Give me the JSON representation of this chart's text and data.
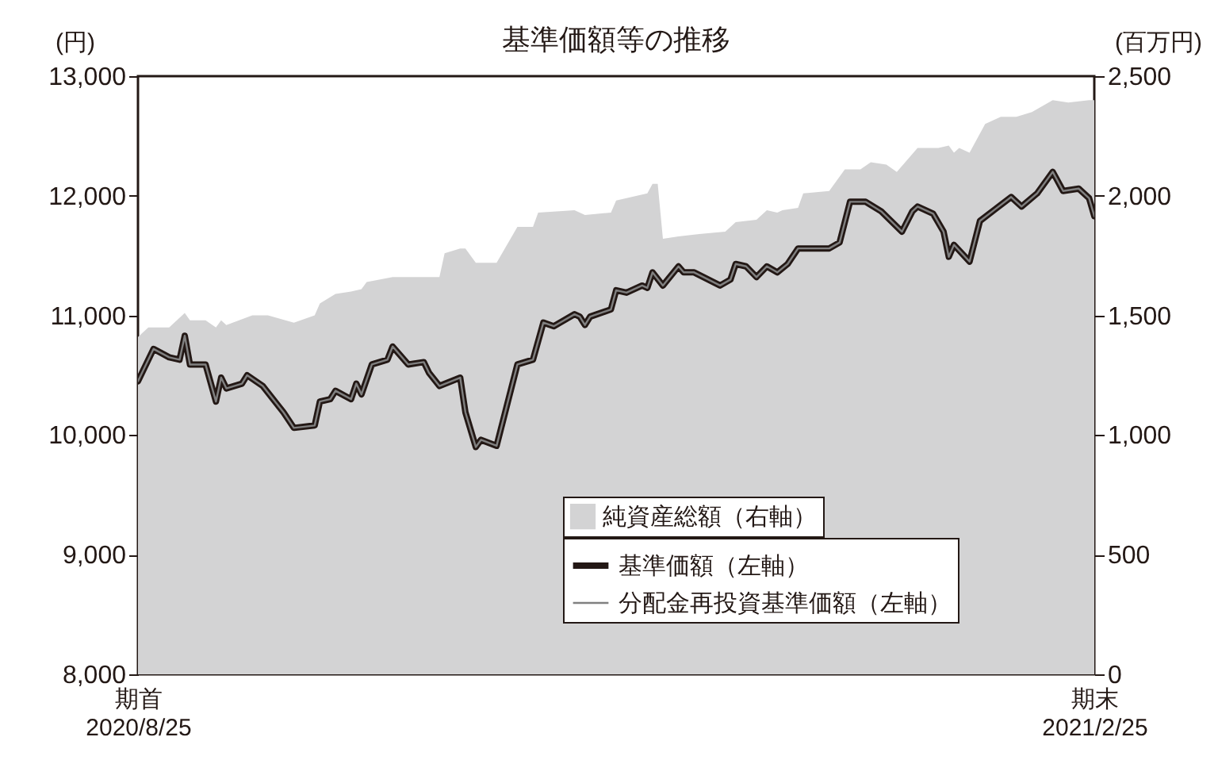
{
  "chart_data": {
    "type": "line",
    "title": "基準価額等の推移",
    "ylabel": "(円)",
    "y2label": "(百万円)",
    "xlim": [
      "2020-08-25",
      "2021-02-25"
    ],
    "xticks": [
      {
        "value": "2020-08-25",
        "label": "期首\n2020/8/25"
      },
      {
        "value": "2021-02-25",
        "label": "期末\n2021/2/25"
      }
    ],
    "ylim": [
      8000,
      13000
    ],
    "yticks": [
      {
        "value": 8000,
        "label": "8,000"
      },
      {
        "value": 9000,
        "label": "9,000"
      },
      {
        "value": 10000,
        "label": "10,000"
      },
      {
        "value": 11000,
        "label": "11,000"
      },
      {
        "value": 12000,
        "label": "12,000"
      },
      {
        "value": 13000,
        "label": "13,000"
      }
    ],
    "y2lim": [
      0,
      2500
    ],
    "y2ticks": [
      0,
      500,
      {
        "value": 1000,
        "label": "1,000"
      },
      {
        "value": 1500,
        "label": "1,500"
      },
      {
        "value": 2000,
        "label": "2,000"
      },
      {
        "value": 2500,
        "label": "2,500"
      }
    ],
    "grid": false,
    "legend": "bottom right",
    "series": [
      {
        "name": "純資産総額（右軸）",
        "type": "area",
        "axis": "y2",
        "color": "#d3d3d4",
        "x": [
          "2020-08-25",
          "2020-08-27",
          "2020-08-31",
          "2020-09-03",
          "2020-09-04",
          "2020-09-07",
          "2020-09-09",
          "2020-09-10",
          "2020-09-11",
          "2020-09-16",
          "2020-09-19",
          "2020-09-24",
          "2020-09-28",
          "2020-09-29",
          "2020-10-02",
          "2020-10-05",
          "2020-10-07",
          "2020-10-08",
          "2020-10-13",
          "2020-10-16",
          "2020-10-19",
          "2020-10-22",
          "2020-10-23",
          "2020-10-26",
          "2020-10-27",
          "2020-10-28",
          "2020-10-29",
          "2020-11-02",
          "2020-11-06",
          "2020-11-09",
          "2020-11-10",
          "2020-11-17",
          "2020-11-19",
          "2020-11-24",
          "2020-11-25",
          "2020-12-01",
          "2020-12-02",
          "2020-12-03",
          "2020-12-04",
          "2020-12-07",
          "2020-12-11",
          "2020-12-16",
          "2020-12-18",
          "2020-12-22",
          "2020-12-24",
          "2020-12-26",
          "2020-12-27",
          "2020-12-30",
          "2020-12-31",
          "2021-01-05",
          "2021-01-08",
          "2021-01-11",
          "2021-01-13",
          "2021-01-16",
          "2021-01-18",
          "2021-01-22",
          "2021-01-26",
          "2021-01-28",
          "2021-01-29",
          "2021-01-30",
          "2021-02-01",
          "2021-02-04",
          "2021-02-07",
          "2021-02-10",
          "2021-02-13",
          "2021-02-17",
          "2021-02-20",
          "2021-02-24",
          "2021-02-25"
        ],
        "values": [
          1410,
          1450,
          1450,
          1510,
          1480,
          1480,
          1450,
          1480,
          1460,
          1500,
          1500,
          1470,
          1500,
          1550,
          1590,
          1600,
          1610,
          1640,
          1660,
          1660,
          1660,
          1660,
          1760,
          1780,
          1780,
          1750,
          1720,
          1720,
          1870,
          1870,
          1930,
          1940,
          1920,
          1930,
          1980,
          2010,
          2050,
          2050,
          1820,
          1830,
          1840,
          1850,
          1890,
          1900,
          1940,
          1930,
          1940,
          1950,
          2010,
          2020,
          2110,
          2110,
          2140,
          2130,
          2100,
          2200,
          2200,
          2210,
          2180,
          2200,
          2180,
          2300,
          2330,
          2330,
          2350,
          2400,
          2390,
          2400,
          2400
        ]
      },
      {
        "name": "基準価額（左軸）",
        "type": "line",
        "color": "#231815",
        "x": [
          "2020-08-25",
          "2020-08-28",
          "2020-08-31",
          "2020-09-02",
          "2020-09-03",
          "2020-09-04",
          "2020-09-07",
          "2020-09-09",
          "2020-09-10",
          "2020-09-11",
          "2020-09-14",
          "2020-09-15",
          "2020-09-18",
          "2020-09-22",
          "2020-09-24",
          "2020-09-28",
          "2020-09-29",
          "2020-10-01",
          "2020-10-02",
          "2020-10-05",
          "2020-10-06",
          "2020-10-07",
          "2020-10-09",
          "2020-10-12",
          "2020-10-13",
          "2020-10-16",
          "2020-10-19",
          "2020-10-20",
          "2020-10-22",
          "2020-10-26",
          "2020-10-27",
          "2020-10-29",
          "2020-10-30",
          "2020-11-02",
          "2020-11-06",
          "2020-11-09",
          "2020-11-11",
          "2020-11-13",
          "2020-11-17",
          "2020-11-18",
          "2020-11-19",
          "2020-11-20",
          "2020-11-24",
          "2020-11-25",
          "2020-11-27",
          "2020-11-30",
          "2020-12-01",
          "2020-12-02",
          "2020-12-04",
          "2020-12-07",
          "2020-12-08",
          "2020-12-10",
          "2020-12-15",
          "2020-12-17",
          "2020-12-18",
          "2020-12-20",
          "2020-12-22",
          "2020-12-24",
          "2020-12-26",
          "2020-12-28",
          "2020-12-30",
          "2021-01-05",
          "2021-01-07",
          "2021-01-09",
          "2021-01-12",
          "2021-01-15",
          "2021-01-19",
          "2021-01-21",
          "2021-01-22",
          "2021-01-25",
          "2021-01-27",
          "2021-01-28",
          "2021-01-29",
          "2021-02-01",
          "2021-02-03",
          "2021-02-06",
          "2021-02-09",
          "2021-02-11",
          "2021-02-14",
          "2021-02-17",
          "2021-02-19",
          "2021-02-22",
          "2021-02-24",
          "2021-02-25"
        ],
        "values": [
          10450,
          10720,
          10650,
          10630,
          10830,
          10590,
          10590,
          10280,
          10480,
          10390,
          10430,
          10500,
          10410,
          10190,
          10060,
          10080,
          10280,
          10300,
          10370,
          10300,
          10430,
          10340,
          10590,
          10630,
          10740,
          10590,
          10610,
          10520,
          10410,
          10480,
          10190,
          9900,
          9960,
          9910,
          10590,
          10630,
          10940,
          10910,
          11010,
          10990,
          10920,
          10990,
          11050,
          11210,
          11190,
          11250,
          11230,
          11360,
          11250,
          11410,
          11360,
          11360,
          11250,
          11300,
          11430,
          11410,
          11320,
          11410,
          11360,
          11430,
          11560,
          11560,
          11610,
          11950,
          11950,
          11870,
          11700,
          11870,
          11910,
          11850,
          11700,
          11490,
          11590,
          11450,
          11790,
          11890,
          11990,
          11910,
          12020,
          12200,
          12040,
          12060,
          11980,
          11830
        ]
      },
      {
        "name": "分配金再投資基準価額（左軸）",
        "type": "line",
        "color": "#808080",
        "x": [
          "2020-08-25",
          "2020-08-28",
          "2020-08-31",
          "2020-09-02",
          "2020-09-03",
          "2020-09-04",
          "2020-09-07",
          "2020-09-09",
          "2020-09-10",
          "2020-09-11",
          "2020-09-14",
          "2020-09-15",
          "2020-09-18",
          "2020-09-22",
          "2020-09-24",
          "2020-09-28",
          "2020-09-29",
          "2020-10-01",
          "2020-10-02",
          "2020-10-05",
          "2020-10-06",
          "2020-10-07",
          "2020-10-09",
          "2020-10-12",
          "2020-10-13",
          "2020-10-16",
          "2020-10-19",
          "2020-10-20",
          "2020-10-22",
          "2020-10-26",
          "2020-10-27",
          "2020-10-29",
          "2020-10-30",
          "2020-11-02",
          "2020-11-06",
          "2020-11-09",
          "2020-11-11",
          "2020-11-13",
          "2020-11-17",
          "2020-11-18",
          "2020-11-19",
          "2020-11-20",
          "2020-11-24",
          "2020-11-25",
          "2020-11-27",
          "2020-11-30",
          "2020-12-01",
          "2020-12-02",
          "2020-12-04",
          "2020-12-07",
          "2020-12-08",
          "2020-12-10",
          "2020-12-15",
          "2020-12-17",
          "2020-12-18",
          "2020-12-20",
          "2020-12-22",
          "2020-12-24",
          "2020-12-26",
          "2020-12-28",
          "2020-12-30",
          "2021-01-05",
          "2021-01-07",
          "2021-01-09",
          "2021-01-12",
          "2021-01-15",
          "2021-01-19",
          "2021-01-21",
          "2021-01-22",
          "2021-01-25",
          "2021-01-27",
          "2021-01-28",
          "2021-01-29",
          "2021-02-01",
          "2021-02-03",
          "2021-02-06",
          "2021-02-09",
          "2021-02-11",
          "2021-02-14",
          "2021-02-17",
          "2021-02-19",
          "2021-02-22",
          "2021-02-24",
          "2021-02-25"
        ],
        "values": [
          10450,
          10720,
          10650,
          10630,
          10830,
          10590,
          10590,
          10280,
          10480,
          10390,
          10430,
          10500,
          10410,
          10190,
          10060,
          10080,
          10280,
          10300,
          10370,
          10300,
          10430,
          10340,
          10590,
          10630,
          10740,
          10590,
          10610,
          10520,
          10410,
          10480,
          10190,
          9900,
          9960,
          9910,
          10590,
          10630,
          10940,
          10910,
          11010,
          10990,
          10920,
          10990,
          11050,
          11210,
          11190,
          11250,
          11230,
          11360,
          11250,
          11410,
          11360,
          11360,
          11250,
          11300,
          11430,
          11410,
          11320,
          11410,
          11360,
          11430,
          11560,
          11560,
          11610,
          11950,
          11950,
          11870,
          11700,
          11870,
          11910,
          11850,
          11700,
          11490,
          11590,
          11450,
          11790,
          11890,
          11990,
          11910,
          12020,
          12200,
          12040,
          12060,
          11980,
          11830
        ]
      }
    ]
  }
}
